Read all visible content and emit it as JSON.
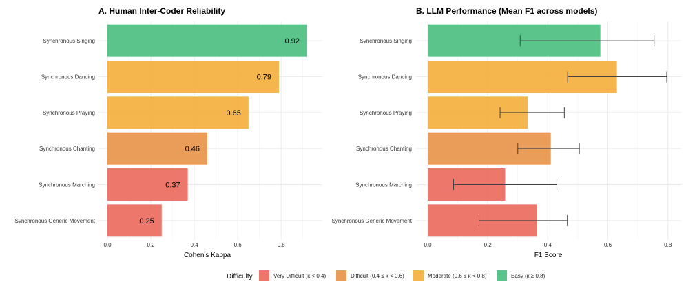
{
  "colors": {
    "Very Difficult": "#ec6b5e",
    "Difficult": "#e8944b",
    "Moderate": "#f4b03e",
    "Easy": "#4cbf80"
  },
  "chart_data": [
    {
      "type": "bar",
      "orientation": "horizontal",
      "title": "A. Human Inter-Coder Reliability",
      "xlabel": "Cohen's Kappa",
      "ylabel": "",
      "xlim": [
        0,
        0.95
      ],
      "xticks": [
        0.0,
        0.2,
        0.4,
        0.6,
        0.8
      ],
      "xtick_labels": [
        "0.0",
        "0.2",
        "0.4",
        "0.6",
        "0.8"
      ],
      "categories": [
        "Synchronous Singing",
        "Synchronous Dancing",
        "Synchronous Praying",
        "Synchronous Chanting",
        "Synchronous Marching",
        "Synchronous Generic Movement"
      ],
      "values": [
        0.92,
        0.79,
        0.65,
        0.46,
        0.37,
        0.25
      ],
      "value_labels": [
        "0.92",
        "0.79",
        "0.65",
        "0.46",
        "0.37",
        "0.25"
      ],
      "difficulty": [
        "Easy",
        "Moderate",
        "Moderate",
        "Difficult",
        "Very Difficult",
        "Very Difficult"
      ]
    },
    {
      "type": "bar",
      "orientation": "horizontal",
      "title": "B. LLM Performance (Mean F1 across models)",
      "xlabel": "F1 Score",
      "ylabel": "",
      "xlim": [
        0,
        0.82
      ],
      "xticks": [
        0.0,
        0.2,
        0.4,
        0.6,
        0.8
      ],
      "xtick_labels": [
        "0.0",
        "0.2",
        "0.4",
        "0.6",
        "0.8"
      ],
      "categories": [
        "Synchronous Singing",
        "Synchronous Dancing",
        "Synchronous Praying",
        "Synchronous Chanting",
        "Synchronous Marching",
        "Synchronous Generic Movement"
      ],
      "values": [
        0.575,
        0.63,
        0.333,
        0.41,
        0.258,
        0.364
      ],
      "error_low": [
        0.308,
        0.466,
        0.241,
        0.3,
        0.086,
        0.171
      ],
      "error_high": [
        0.754,
        0.796,
        0.455,
        0.505,
        0.43,
        0.465
      ],
      "difficulty": [
        "Easy",
        "Moderate",
        "Moderate",
        "Difficult",
        "Very Difficult",
        "Very Difficult"
      ]
    }
  ],
  "legend": {
    "title": "Difficulty",
    "items": [
      {
        "key": "Very Difficult",
        "label": "Very Difficult (κ < 0.4)"
      },
      {
        "key": "Difficult",
        "label": "Difficult (0.4 ≤ κ < 0.6)"
      },
      {
        "key": "Moderate",
        "label": "Moderate (0.6 ≤ κ < 0.8)"
      },
      {
        "key": "Easy",
        "label": "Easy (κ ≥ 0.8)"
      }
    ]
  }
}
